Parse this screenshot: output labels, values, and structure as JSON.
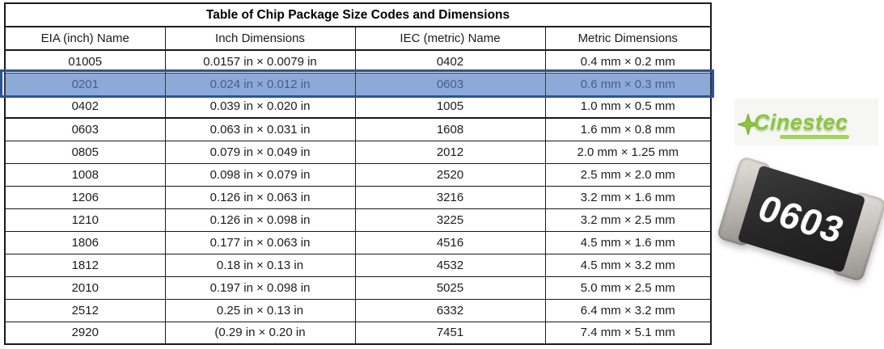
{
  "chart_data": {
    "type": "table",
    "title": "Table of Chip Package Size Codes and Dimensions",
    "columns": [
      "EIA (inch) Name",
      "Inch Dimensions",
      "IEC (metric) Name",
      "Metric Dimensions"
    ],
    "rows": [
      [
        "01005",
        "0.0157 in × 0.0079 in",
        "0402",
        "0.4 mm × 0.2 mm"
      ],
      [
        "0201",
        "0.024 in × 0.012 in",
        "0603",
        "0.6 mm × 0.3 mm"
      ],
      [
        "0402",
        "0.039 in × 0.020 in",
        "1005",
        "1.0 mm × 0.5 mm"
      ],
      [
        "0603",
        "0.063 in × 0.031 in",
        "1608",
        "1.6 mm × 0.8 mm"
      ],
      [
        "0805",
        "0.079 in × 0.049 in",
        "2012",
        "2.0 mm × 1.25 mm"
      ],
      [
        "1008",
        "0.098 in × 0.079 in",
        "2520",
        "2.5 mm × 2.0 mm"
      ],
      [
        "1206",
        "0.126 in × 0.063 in",
        "3216",
        "3.2 mm × 1.6 mm"
      ],
      [
        "1210",
        "0.126 in × 0.098 in",
        "3225",
        "3.2 mm × 2.5 mm"
      ],
      [
        "1806",
        "0.177 in × 0.063 in",
        "4516",
        "4.5 mm × 1.6 mm"
      ],
      [
        "1812",
        "0.18 in × 0.13 in",
        "4532",
        "4.5 mm × 3.2 mm"
      ],
      [
        "2010",
        "0.197 in × 0.098 in",
        "5025",
        "5.0 mm × 2.5 mm"
      ],
      [
        "2512",
        "0.25 in × 0.13 in",
        "6332",
        "6.4 mm × 3.2 mm"
      ],
      [
        "2920",
        "(0.29 in × 0.20 in",
        "7451",
        "7.4 mm × 5.1 mm"
      ]
    ],
    "highlighted_row_index": 1,
    "highlighted_row_values": [
      "0201",
      "0.024 in × 0.012 in",
      "0603",
      "0.6 mm × 0.3 mm"
    ]
  },
  "logo": {
    "text": "Cinestec"
  },
  "chip_photo": {
    "label": "0603"
  },
  "colors": {
    "highlight_fill": "#8EA9D8",
    "highlight_border": "#2E5395",
    "highlight_text": "#2F4B7C",
    "table_border": "#1A1A1A",
    "logo_green": "#8CC63E",
    "chip_body": "#262626",
    "chip_terminal": "#B5B1AB",
    "chip_label_color": "#FFFFFF"
  }
}
